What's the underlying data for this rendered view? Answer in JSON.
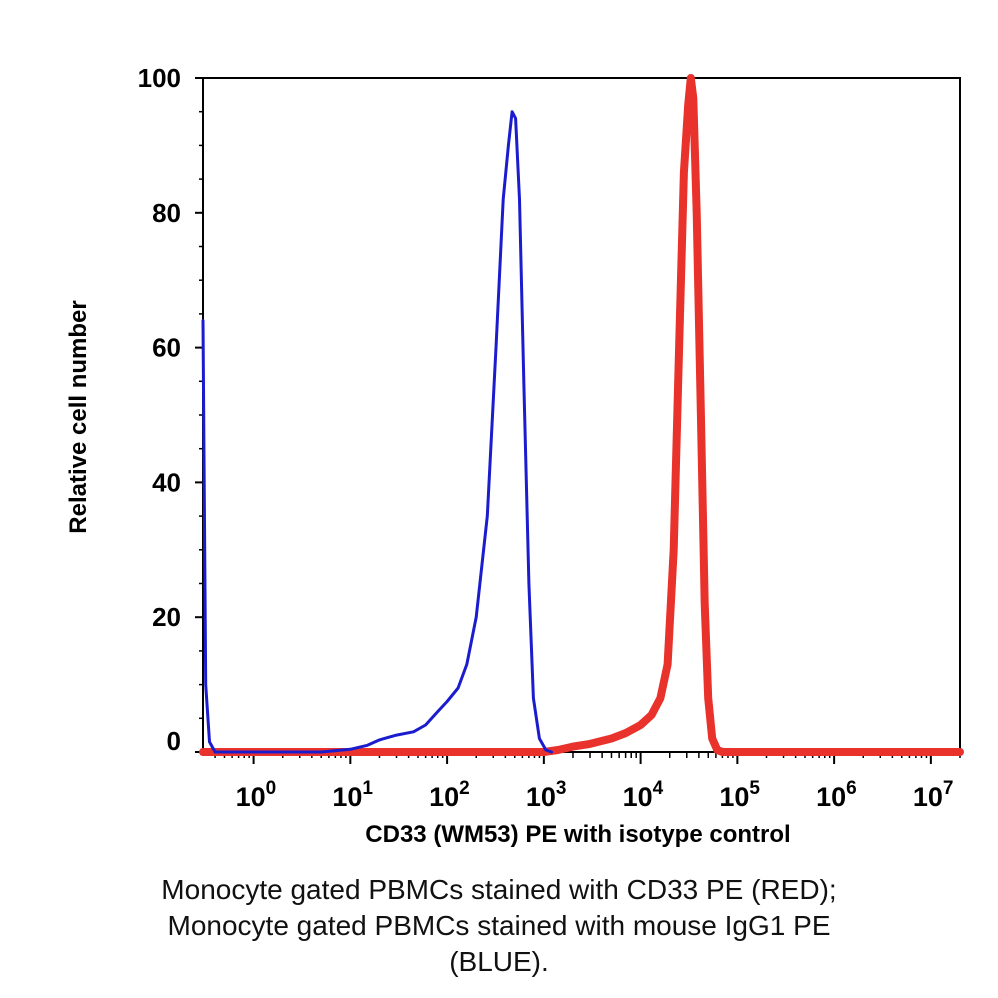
{
  "chart_data": {
    "type": "line",
    "xlabel": "CD33 (WM53) PE with isotype control",
    "ylabel": "Relative cell number",
    "xscale": "log",
    "xlim": [
      0.3,
      20000000
    ],
    "ylim": [
      0,
      100
    ],
    "grid": false,
    "legend": "none",
    "yticks": [
      0,
      20,
      40,
      60,
      80,
      100
    ],
    "xticks": [
      {
        "value": 1,
        "base": "10",
        "exp": "0"
      },
      {
        "value": 10,
        "base": "10",
        "exp": "1"
      },
      {
        "value": 100,
        "base": "10",
        "exp": "2"
      },
      {
        "value": 1000,
        "base": "10",
        "exp": "3"
      },
      {
        "value": 10000,
        "base": "10",
        "exp": "4"
      },
      {
        "value": 100000,
        "base": "10",
        "exp": "5"
      },
      {
        "value": 1000000,
        "base": "10",
        "exp": "6"
      },
      {
        "value": 10000000,
        "base": "10",
        "exp": "7"
      }
    ],
    "series": [
      {
        "color": "#e8322b",
        "points": [
          [
            0.3,
            0
          ],
          [
            1000,
            0
          ],
          [
            1400,
            0.3
          ],
          [
            2000,
            0.8
          ],
          [
            3000,
            1.2
          ],
          [
            5000,
            2
          ],
          [
            7000,
            2.8
          ],
          [
            10000,
            4
          ],
          [
            13000,
            5.5
          ],
          [
            16000,
            8
          ],
          [
            19000,
            13
          ],
          [
            22000,
            30
          ],
          [
            25000,
            60
          ],
          [
            28000,
            86
          ],
          [
            31000,
            96
          ],
          [
            33000,
            100
          ],
          [
            35000,
            97
          ],
          [
            38000,
            80
          ],
          [
            42000,
            50
          ],
          [
            46000,
            22
          ],
          [
            50000,
            8
          ],
          [
            55000,
            2
          ],
          [
            62000,
            0.3
          ],
          [
            70000,
            0
          ],
          [
            20000000,
            0
          ]
        ]
      },
      {
        "color": "#1c1ccf",
        "points": [
          [
            0.3,
            64
          ],
          [
            0.32,
            10
          ],
          [
            0.35,
            1.5
          ],
          [
            0.4,
            0
          ],
          [
            5,
            0
          ],
          [
            10,
            0.4
          ],
          [
            15,
            1
          ],
          [
            20,
            1.8
          ],
          [
            30,
            2.5
          ],
          [
            45,
            3
          ],
          [
            60,
            4
          ],
          [
            80,
            6
          ],
          [
            100,
            7.5
          ],
          [
            130,
            9.5
          ],
          [
            160,
            13
          ],
          [
            200,
            20
          ],
          [
            260,
            35
          ],
          [
            320,
            60
          ],
          [
            380,
            82
          ],
          [
            430,
            90
          ],
          [
            470,
            95
          ],
          [
            510,
            94
          ],
          [
            560,
            82
          ],
          [
            620,
            55
          ],
          [
            700,
            25
          ],
          [
            780,
            8
          ],
          [
            900,
            2
          ],
          [
            1050,
            0.3
          ],
          [
            1200,
            0
          ]
        ]
      }
    ]
  },
  "caption": {
    "line1": "Monocyte gated PBMCs stained with CD33 PE (RED);",
    "line2": "Monocyte gated PBMCs stained with mouse IgG1 PE",
    "line3": "(BLUE)."
  }
}
